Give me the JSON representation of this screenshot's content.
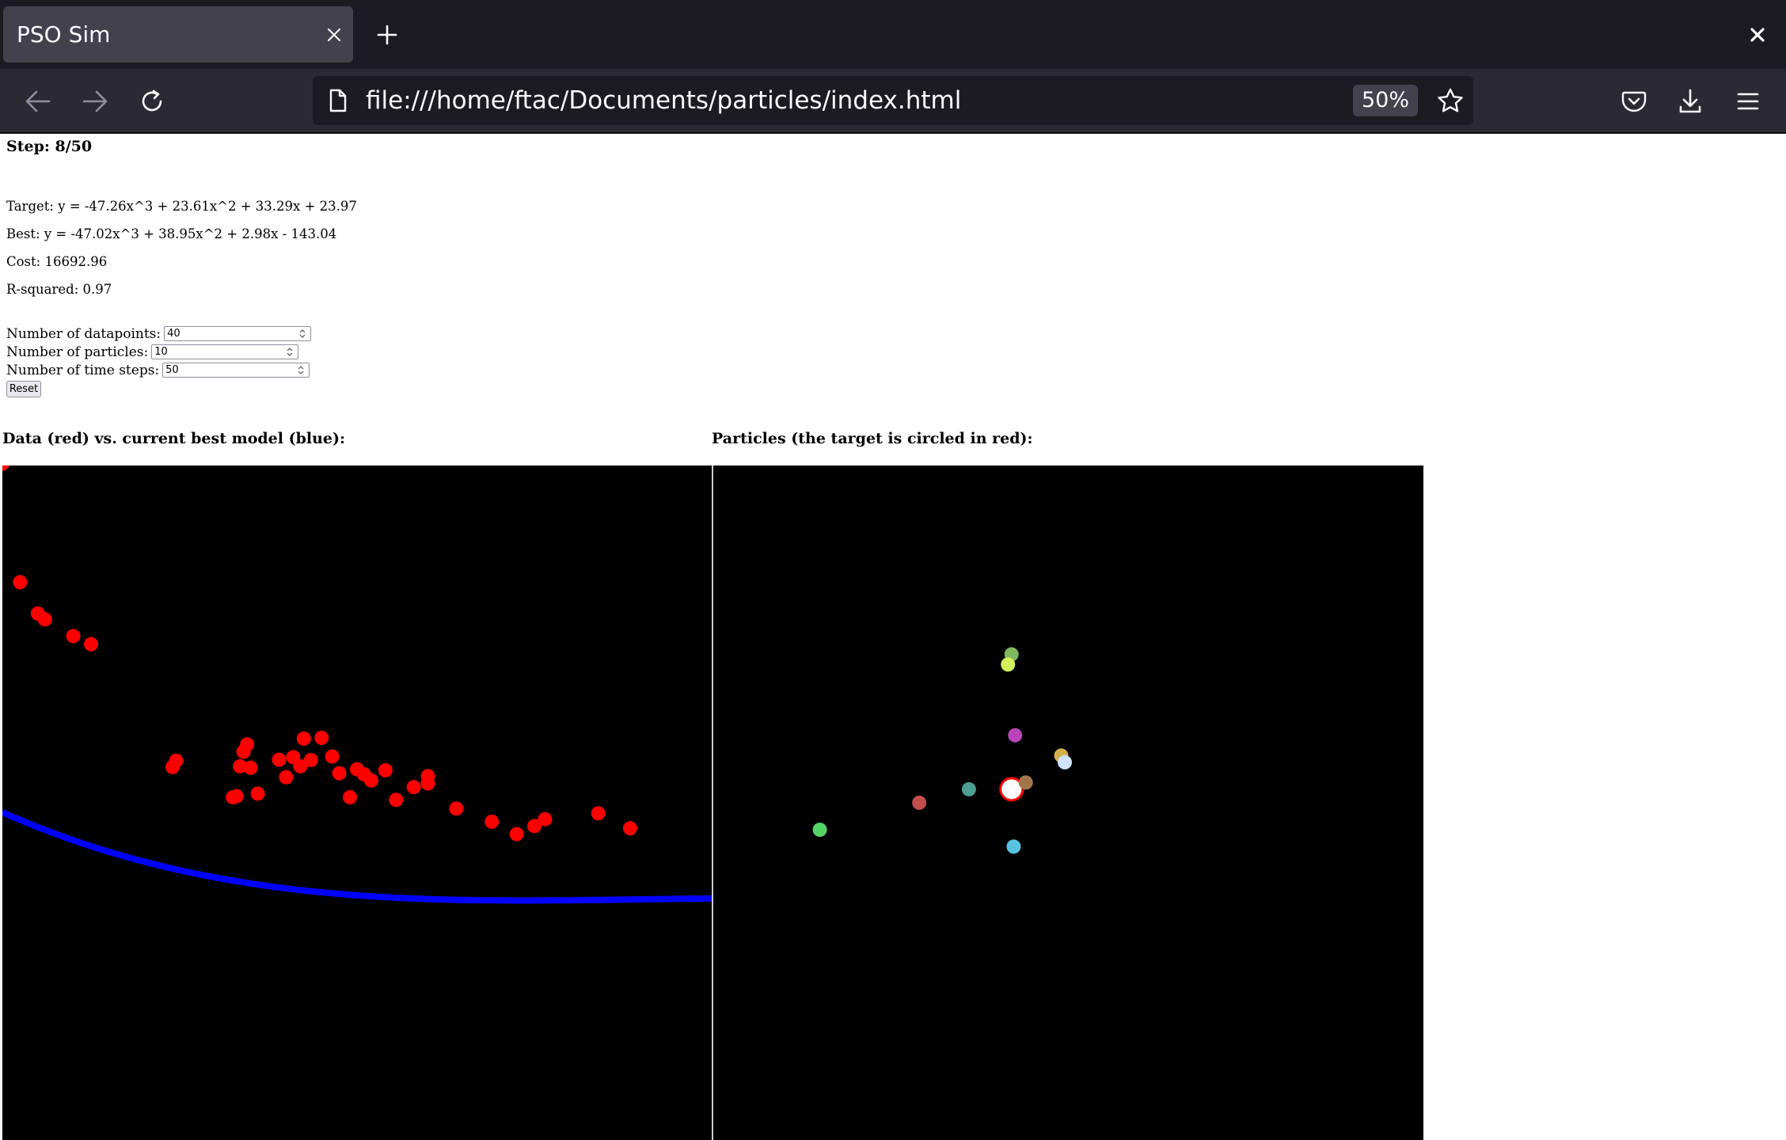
{
  "browser": {
    "tab_title": "PSO Sim",
    "url": "file:///home/ftac/Documents/particles/index.html",
    "zoom": "50%"
  },
  "icons": {
    "tab_close": "close-icon",
    "new_tab": "plus-icon",
    "window_close": "close-icon",
    "back": "arrow-left-icon",
    "forward": "arrow-right-icon",
    "reload": "reload-icon",
    "page": "page-icon",
    "bookmark": "star-icon",
    "pocket": "pocket-icon",
    "downloads": "download-icon",
    "menu": "hamburger-menu-icon"
  },
  "page": {
    "step": "Step: 8/50",
    "target": "Target: y = -47.26x^3 + 23.61x^2 + 33.29x + 23.97",
    "best": "Best: y = -47.02x^3 + 38.95x^2 + 2.98x - 143.04",
    "cost": "Cost: 16692.96",
    "r_squared": "R-squared: 0.97",
    "form": {
      "datapoints_label": "Number of datapoints:",
      "datapoints_value": "40",
      "particles_label": "Number of particles:",
      "particles_value": "10",
      "timesteps_label": "Number of time steps:",
      "timesteps_value": "50",
      "reset_label": "Reset"
    },
    "data_panel_title": "Data (red) vs. current best model (blue):",
    "particles_panel_title": "Particles (the target is circled in red):"
  },
  "colors": {
    "data_points": "#ff0000",
    "model_curve": "#0000ff",
    "canvas_bg": "#000000",
    "target_ring": "#ff0000"
  },
  "chart_data": [
    {
      "type": "scatter",
      "series": [
        {
          "x": [
            -1.5,
            -1.45,
            -1.4,
            -1.38,
            -1.3,
            -1.25,
            -1.02,
            -1.01,
            -0.85,
            -0.84,
            -0.83,
            -0.82,
            -0.81,
            -0.8,
            -0.78,
            -0.72,
            -0.7,
            -0.68,
            -0.66,
            -0.65,
            -0.63,
            -0.6,
            -0.57,
            -0.55,
            -0.52,
            -0.5,
            -0.48,
            -0.46,
            -0.42,
            -0.39,
            -0.34,
            -0.3,
            -0.3,
            -0.22,
            -0.12,
            -0.05,
            0.0,
            0.03,
            0.18,
            0.27
          ],
          "y": [
            1055,
            730,
            644,
            628,
            582,
            560,
            223,
            240,
            140,
            143,
            225,
            265,
            285,
            221,
            150,
            243,
            195,
            250,
            225,
            301,
            242,
            303,
            252,
            206,
            140,
            217,
            203,
            186,
            214,
            133,
            168,
            198,
            178,
            109,
            73,
            39,
            61,
            80,
            96,
            55
          ]
        }
      ]
    },
    {
      "type": "scatter",
      "points": [
        {
          "color": "#55d466",
          "x": 0.15,
          "y": 0.46
        },
        {
          "color": "#c24e4e",
          "x": 0.29,
          "y": 0.5
        },
        {
          "color": "#4e9e92",
          "x": 0.36,
          "y": 0.52
        },
        {
          "color": "#80b85e",
          "x": 0.42,
          "y": 0.72
        },
        {
          "color": "#d4f05a",
          "x": 0.415,
          "y": 0.705
        },
        {
          "color": "#b844b8",
          "x": 0.425,
          "y": 0.6
        },
        {
          "color": "#a0764a",
          "x": 0.44,
          "y": 0.53
        },
        {
          "color": "#d4b04a",
          "x": 0.49,
          "y": 0.57
        },
        {
          "color": "#cfe3ff",
          "x": 0.495,
          "y": 0.56
        },
        {
          "color": "#58c3e0",
          "x": 0.423,
          "y": 0.435
        }
      ],
      "target": {
        "x": 0.42,
        "y": 0.52
      }
    }
  ]
}
